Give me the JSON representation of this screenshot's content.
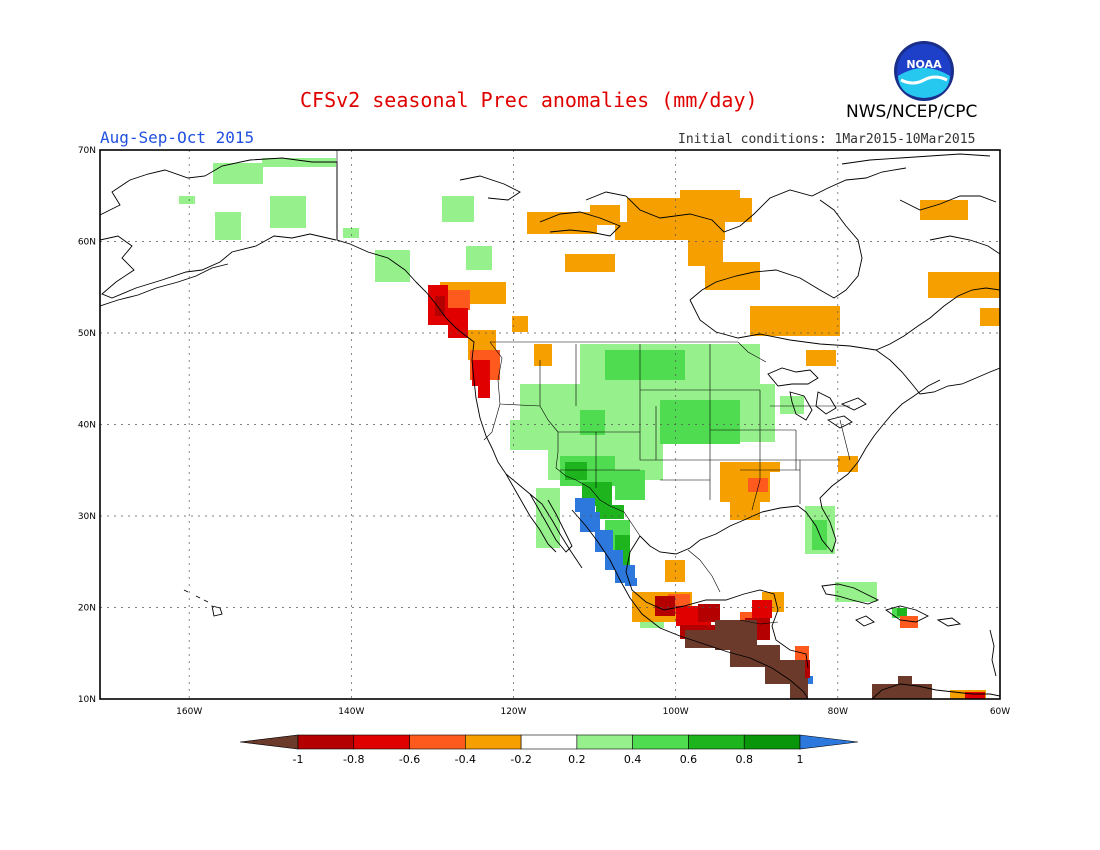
{
  "header": {
    "title": "CFSv2 seasonal Prec anomalies (mm/day)",
    "agency": "NWS/NCEP/CPC",
    "period": "Aug-Sep-Oct 2015",
    "initial_conditions": "Initial conditions: 1Mar2015-10Mar2015",
    "logo_text": "NOAA"
  },
  "map": {
    "lat_labels": [
      "70N",
      "60N",
      "50N",
      "40N",
      "30N",
      "20N",
      "10N"
    ],
    "lon_labels": [
      "160W",
      "140W",
      "120W",
      "100W",
      "80W",
      "60W"
    ],
    "lat_values": [
      70,
      60,
      50,
      40,
      30,
      20,
      10
    ],
    "lon_values": [
      -160,
      -140,
      -120,
      -100,
      -80,
      -60
    ],
    "lon_range": [
      -171,
      -60
    ],
    "lat_range": [
      10,
      70
    ],
    "grid": true
  },
  "legend": {
    "labels": [
      "-1",
      "-0.8",
      "-0.6",
      "-0.4",
      "-0.2",
      "0.2",
      "0.4",
      "0.6",
      "0.8",
      "1"
    ],
    "colors": [
      "#6b3a2a",
      "#b40000",
      "#e00000",
      "#ff5a1e",
      "#f5a000",
      "#ffffff",
      "#96f08c",
      "#50dc50",
      "#1eb41e",
      "#0a960a",
      "#2d78dc"
    ]
  },
  "colors": {
    "title": "#e00000",
    "period": "#2050e0",
    "brown": "#6b3a2a",
    "dark_red": "#b40000",
    "red": "#e00000",
    "red_orange": "#ff5a1e",
    "orange": "#f5a000",
    "light_green": "#96f08c",
    "green": "#50dc50",
    "med_green": "#1eb41e",
    "dark_green": "#0a960a",
    "blue": "#2d78dc"
  }
}
